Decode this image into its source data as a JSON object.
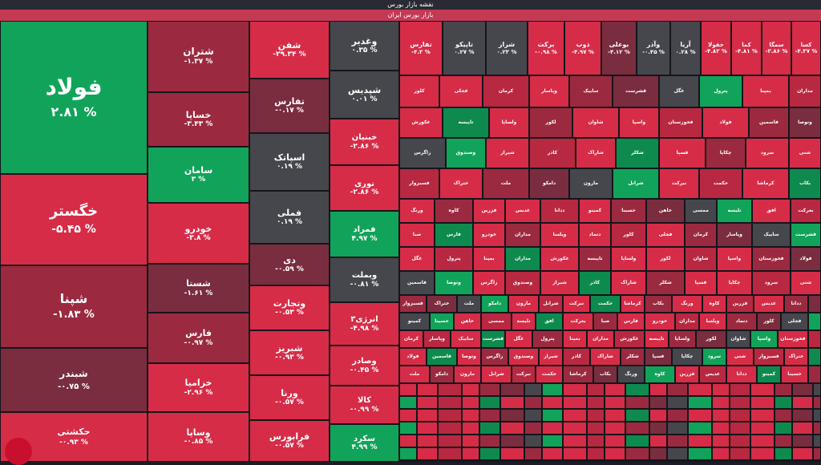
{
  "header": {
    "title": "نقشه بازار بورس",
    "subtitle": "بازار بورس ایران"
  },
  "colors": {
    "red": "#d62c48",
    "green": "#12a35a",
    "neutral": "#46464d"
  },
  "tiles": {
    "foolad": {
      "name": "فولاد",
      "pct": "۲.۸۱ %"
    },
    "khegostar": {
      "name": "خگستر",
      "pct": "-۵.۴۵ %"
    },
    "shepna": {
      "name": "شپنا",
      "pct": "-۱.۸۳ %"
    },
    "shebandar": {
      "name": "شبندر",
      "pct": "-۰.۷۵ %"
    },
    "hakeshti": {
      "name": "حکشتی",
      "pct": "-۰.۹۳ %"
    },
    "shetran": {
      "name": "شتران",
      "pct": "-۱.۳۷ %"
    },
    "khesapa": {
      "name": "خساپا",
      "pct": "-۳.۴۳ %"
    },
    "saman": {
      "name": "سامان",
      "pct": "۳ %"
    },
    "khodro": {
      "name": "خودرو",
      "pct": "-۳.۸ %"
    },
    "shasta": {
      "name": "شستا",
      "pct": "-۱.۶۱ %"
    },
    "fars": {
      "name": "فارس",
      "pct": "-۰.۹۷ %"
    },
    "khazamia": {
      "name": "خزامیا",
      "pct": "-۲.۹۶ %"
    },
    "vsapa": {
      "name": "وساپا",
      "pct": "-۰.۸۵ %"
    },
    "shafan": {
      "name": "شفن",
      "pct": "-۲۹.۳۴ %"
    },
    "tefars": {
      "name": "تفارس",
      "pct": "-۰.۱۷ %"
    },
    "ispatak": {
      "name": "اسپاتک",
      "pct": "۰.۱۹ %"
    },
    "famli": {
      "name": "فملی",
      "pct": "۰.۱۹ %"
    },
    "di": {
      "name": "دی",
      "pct": "-۰.۵۹ %"
    },
    "vtejarat": {
      "name": "وتجارت",
      "pct": "-۰.۵۳ %"
    },
    "shabriz": {
      "name": "شبریز",
      "pct": "-۰.۹۳ %"
    },
    "varna": {
      "name": "ورنا",
      "pct": "-۰.۵۷ %"
    },
    "faraboors": {
      "name": "فرابورس",
      "pct": "-۰.۵۷ %"
    },
    "vghadir": {
      "name": "وغدیر",
      "pct": "۰.۳۵ %"
    },
    "shepdis": {
      "name": "شپدیس",
      "pct": "۰.۰۱ %"
    },
    "khabahman": {
      "name": "خبنیان",
      "pct": "-۲.۸۶ %"
    },
    "noori": {
      "name": "نوری",
      "pct": "-۲.۸۶ %"
    },
    "famrad": {
      "name": "فمراد",
      "pct": "۴.۹۷ %"
    },
    "vbemellat": {
      "name": "وبملت",
      "pct": "-۰.۸۱ %"
    },
    "anerzi3": {
      "name": "انرژی۳",
      "pct": "-۴.۹۸ %"
    },
    "vsadar": {
      "name": "وصادر",
      "pct": "-۰.۴۵ %"
    },
    "kala": {
      "name": "کالا",
      "pct": "-۰.۹۹ %"
    },
    "sekord": {
      "name": "سکرد",
      "pct": "۴.۹۹ %"
    },
    "tefarsb": {
      "name": "تفارس",
      "pct": "-۴.۳ %"
    },
    "tapiko": {
      "name": "تاپیکو",
      "pct": "۰.۲۷ %"
    },
    "shiraz": {
      "name": "شراز",
      "pct": "۰.۲۳ %"
    },
    "barakat": {
      "name": "برکت",
      "pct": "-۰.۹۸ %"
    },
    "zob": {
      "name": "ذوب",
      "pct": "-۴.۹۷ %"
    },
    "booali": {
      "name": "بوعلی",
      "pct": "-۴.۱۲ %"
    },
    "vatar": {
      "name": "وآذر",
      "pct": "-۰.۴۵ %"
    },
    "arya": {
      "name": "آریا",
      "pct": "۰.۲۸ %"
    },
    "khavlad": {
      "name": "خفولا",
      "pct": "-۴.۸۳ %"
    },
    "kama": {
      "name": "کما",
      "pct": "-۴.۸۱ %"
    },
    "semga": {
      "name": "سمگا",
      "pct": "-۳.۸۶ %"
    },
    "kasa": {
      "name": "کسا",
      "pct": "-۴.۳۷ %"
    }
  },
  "small_labels": [
    "کلور",
    "فجلی",
    "کرمان",
    "وپاسار",
    "ساییک",
    "قشرست",
    "غگل",
    "پترول",
    "بمپنا",
    "مداران",
    "غکورش",
    "تاپیسه",
    "ولساپا",
    "لکور",
    "شاوان",
    "واسپا",
    "فخوزستان",
    "فولاد",
    "فاسمین",
    "وتوصا",
    "زاگرس",
    "وصندوق",
    "شیراز",
    "کاذر",
    "شاراک",
    "شکلر",
    "فسپا",
    "چکاپا",
    "سرود",
    "شتی",
    "فسبزوار",
    "ختراک",
    "ملت",
    "دامکو",
    "مارون",
    "شرانل",
    "نبرکت",
    "حکمت",
    "کرماشا",
    "بکاب",
    "ورنگ",
    "کاوه",
    "فزرین",
    "غدیس",
    "ددانا",
    "کمینو",
    "حسینا",
    "خاهن",
    "ممسی",
    "تلیسه",
    "افق",
    "بعرکت",
    "صبا",
    "فارس",
    "خودرو",
    "مداران",
    "ویلسا",
    "دتماد"
  ]
}
